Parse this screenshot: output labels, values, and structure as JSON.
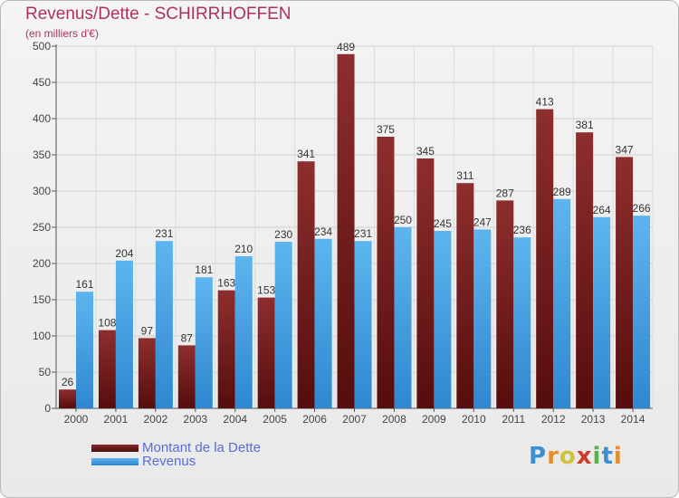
{
  "header": {
    "title": "Revenus/Dette - SCHIRRHOFFEN",
    "subtitle": "(en milliers d'€)"
  },
  "legend": {
    "debt_label": "Montant de la Dette",
    "revenue_label": "Revenus"
  },
  "logo": {
    "text": "Proxiti",
    "letters": [
      "P",
      "r",
      "o",
      "x",
      "i",
      "t",
      "i"
    ]
  },
  "colors": {
    "debt": "#7a1f1f",
    "revenue": "#4aa3e6",
    "title": "#b0325a",
    "legend_text": "#5a6cd8"
  },
  "chart_data": {
    "type": "bar",
    "categories": [
      "2000",
      "2001",
      "2002",
      "2003",
      "2004",
      "2005",
      "2006",
      "2007",
      "2008",
      "2009",
      "2010",
      "2011",
      "2012",
      "2013",
      "2014"
    ],
    "series": [
      {
        "name": "Montant de la Dette",
        "values": [
          26,
          108,
          97,
          87,
          163,
          153,
          341,
          489,
          375,
          345,
          311,
          287,
          413,
          381,
          347
        ]
      },
      {
        "name": "Revenus",
        "values": [
          161,
          204,
          231,
          181,
          210,
          230,
          234,
          231,
          250,
          245,
          247,
          236,
          289,
          264,
          266
        ]
      }
    ],
    "ylim": [
      0,
      500
    ],
    "yticks": [
      0,
      50,
      100,
      150,
      200,
      250,
      300,
      350,
      400,
      450,
      500
    ],
    "grid": true,
    "data_labels": true,
    "legend_position": "bottom-left"
  }
}
